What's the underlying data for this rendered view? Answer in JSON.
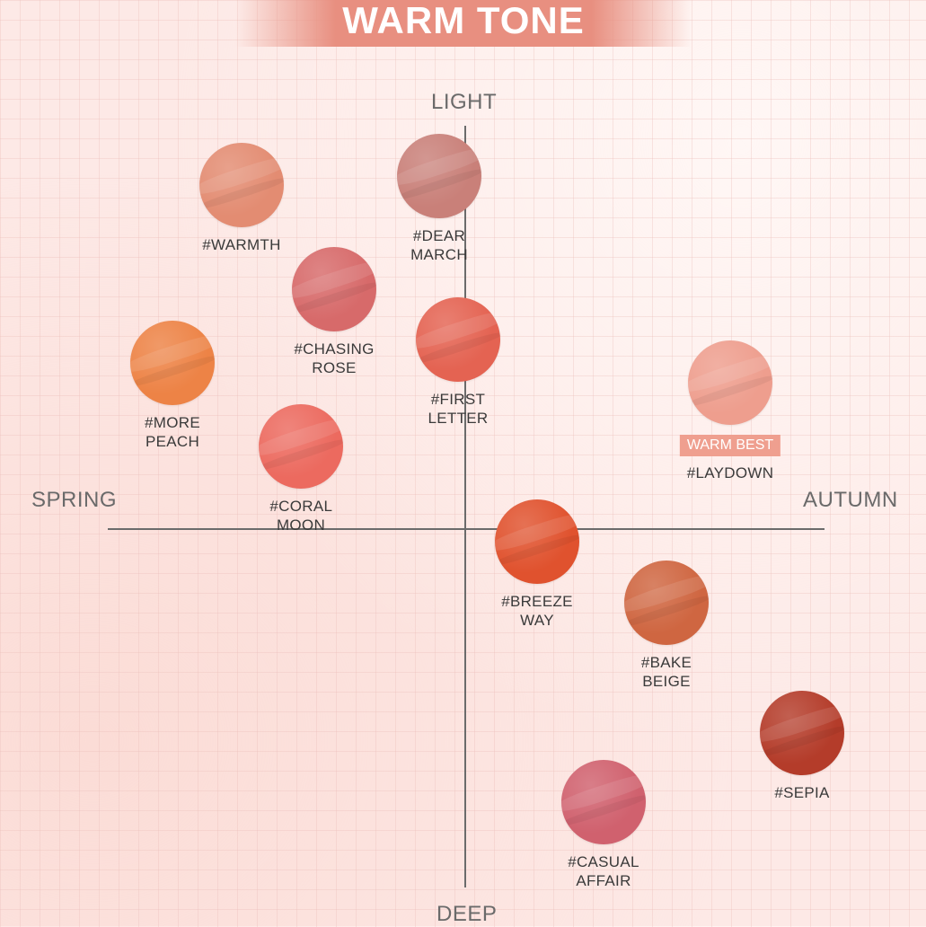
{
  "title": "WARM TONE",
  "axes": {
    "top": "LIGHT",
    "bottom": "DEEP",
    "left": "SPRING",
    "right": "AUTUMN"
  },
  "colors": {
    "title_band": "#e88f80",
    "axis": "#6b6b6b",
    "badge": "#ef9f8f"
  },
  "shades": [
    {
      "id": "warmth",
      "name": "#WARMTH",
      "color": "#e38c72",
      "badge": ""
    },
    {
      "id": "dear-march",
      "name": "#DEAR MARCH",
      "color": "#c98079",
      "badge": ""
    },
    {
      "id": "chasing-rose",
      "name": "#CHASING\nROSE",
      "color": "#d76a6a",
      "badge": ""
    },
    {
      "id": "more-peach",
      "name": "#MORE PEACH",
      "color": "#ed8346",
      "badge": ""
    },
    {
      "id": "first-letter",
      "name": "#FIRST\nLETTER",
      "color": "#e46352",
      "badge": ""
    },
    {
      "id": "laydown",
      "name": "#LAYDOWN",
      "color": "#ee9e8e",
      "badge": "WARM BEST"
    },
    {
      "id": "coral-moon",
      "name": "#CORAL MOON",
      "color": "#ec6a5f",
      "badge": ""
    },
    {
      "id": "breeze-way",
      "name": "#BREEZE\nWAY",
      "color": "#e0522e",
      "badge": ""
    },
    {
      "id": "bake-beige",
      "name": "#BAKE BEIGE",
      "color": "#cf6641",
      "badge": ""
    },
    {
      "id": "sepia",
      "name": "#SEPIA",
      "color": "#b43c2a",
      "badge": ""
    },
    {
      "id": "casual-affair",
      "name": "#CASUAL\nAFFAIR",
      "color": "#d0616e",
      "badge": ""
    }
  ]
}
